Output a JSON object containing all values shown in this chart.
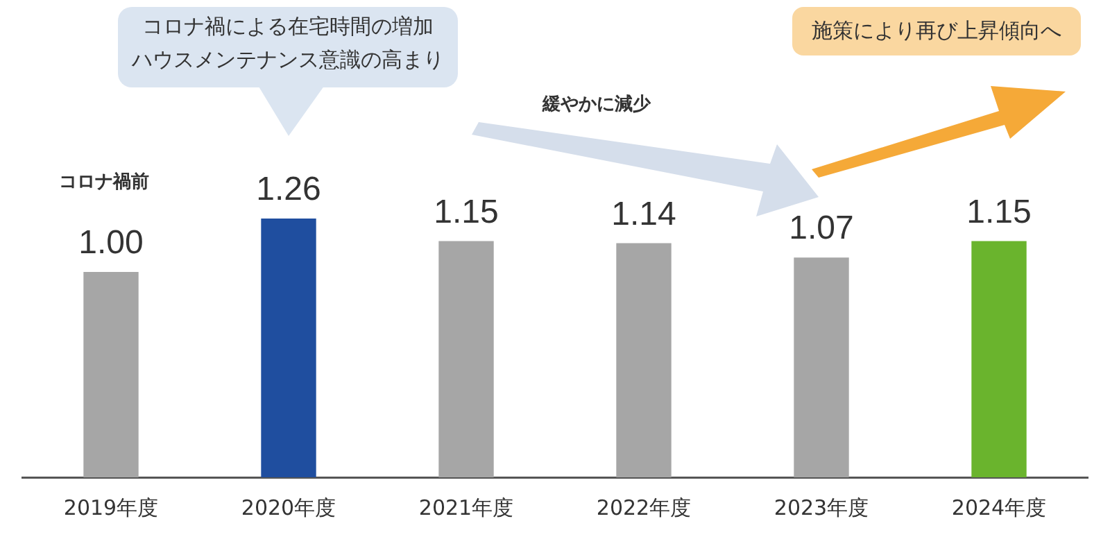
{
  "chart_data": {
    "type": "bar",
    "categories": [
      "2019年度",
      "2020年度",
      "2021年度",
      "2022年度",
      "2023年度",
      "2024年度"
    ],
    "values": [
      1.0,
      1.26,
      1.15,
      1.14,
      1.07,
      1.15
    ],
    "colors": [
      "#a6a6a6",
      "#1f4e9f",
      "#a6a6a6",
      "#a6a6a6",
      "#a6a6a6",
      "#6ab42d"
    ],
    "value_labels": [
      "1.00",
      "1.26",
      "1.15",
      "1.14",
      "1.07",
      "1.15"
    ],
    "tick_labels": "x",
    "grid": false,
    "legend": false,
    "annotations": [
      "コロナ禍前",
      "コロナ禍による在宅時間の増加",
      "ハウスメンテナンス意識の高まり",
      "緩やかに減少",
      "施策により再び上昇傾向へ"
    ]
  }
}
